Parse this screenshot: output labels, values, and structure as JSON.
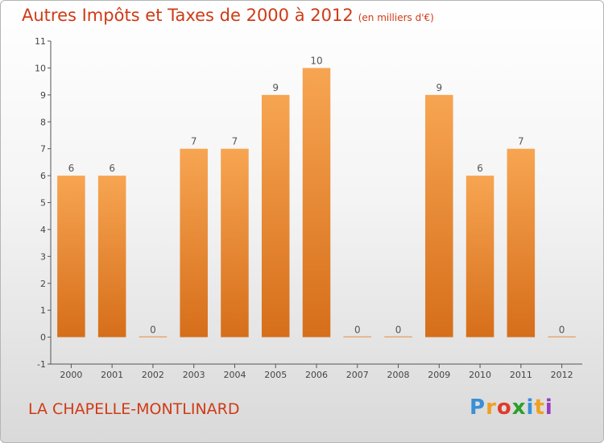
{
  "chart_data": {
    "type": "bar",
    "title": "Autres Impôts et Taxes de 2000 à 2012",
    "unit": "(en milliers d'€)",
    "categories": [
      "2000",
      "2001",
      "2002",
      "2003",
      "2004",
      "2005",
      "2006",
      "2007",
      "2008",
      "2009",
      "2010",
      "2011",
      "2012"
    ],
    "values": [
      6,
      6,
      0,
      7,
      7,
      9,
      10,
      0,
      0,
      9,
      6,
      7,
      0
    ],
    "data_labels": [
      "6",
      "6",
      "0",
      "7",
      "7",
      "9",
      "10",
      "0",
      "0",
      "9",
      "6",
      "7",
      "0"
    ],
    "y_ticks": [
      "-1",
      "0",
      "1",
      "2",
      "3",
      "4",
      "5",
      "6",
      "7",
      "8",
      "9",
      "10",
      "11"
    ],
    "ylim": [
      -1,
      11
    ],
    "grid": false,
    "colors": {
      "bar_light": "#f7a552",
      "bar_dark": "#d66e1a",
      "axis": "#555555",
      "title": "#d03a15"
    }
  },
  "footer": {
    "commune": "LA CHAPELLE-MONTLINARD"
  },
  "logo": {
    "letters": [
      "P",
      "r",
      "o",
      "x",
      "i",
      "t",
      "i"
    ],
    "colors": [
      "#3a8fd6",
      "#f0a020",
      "#e03a2a",
      "#2aa02a",
      "#3a8fd6",
      "#f0a020",
      "#9a3ac0"
    ]
  }
}
